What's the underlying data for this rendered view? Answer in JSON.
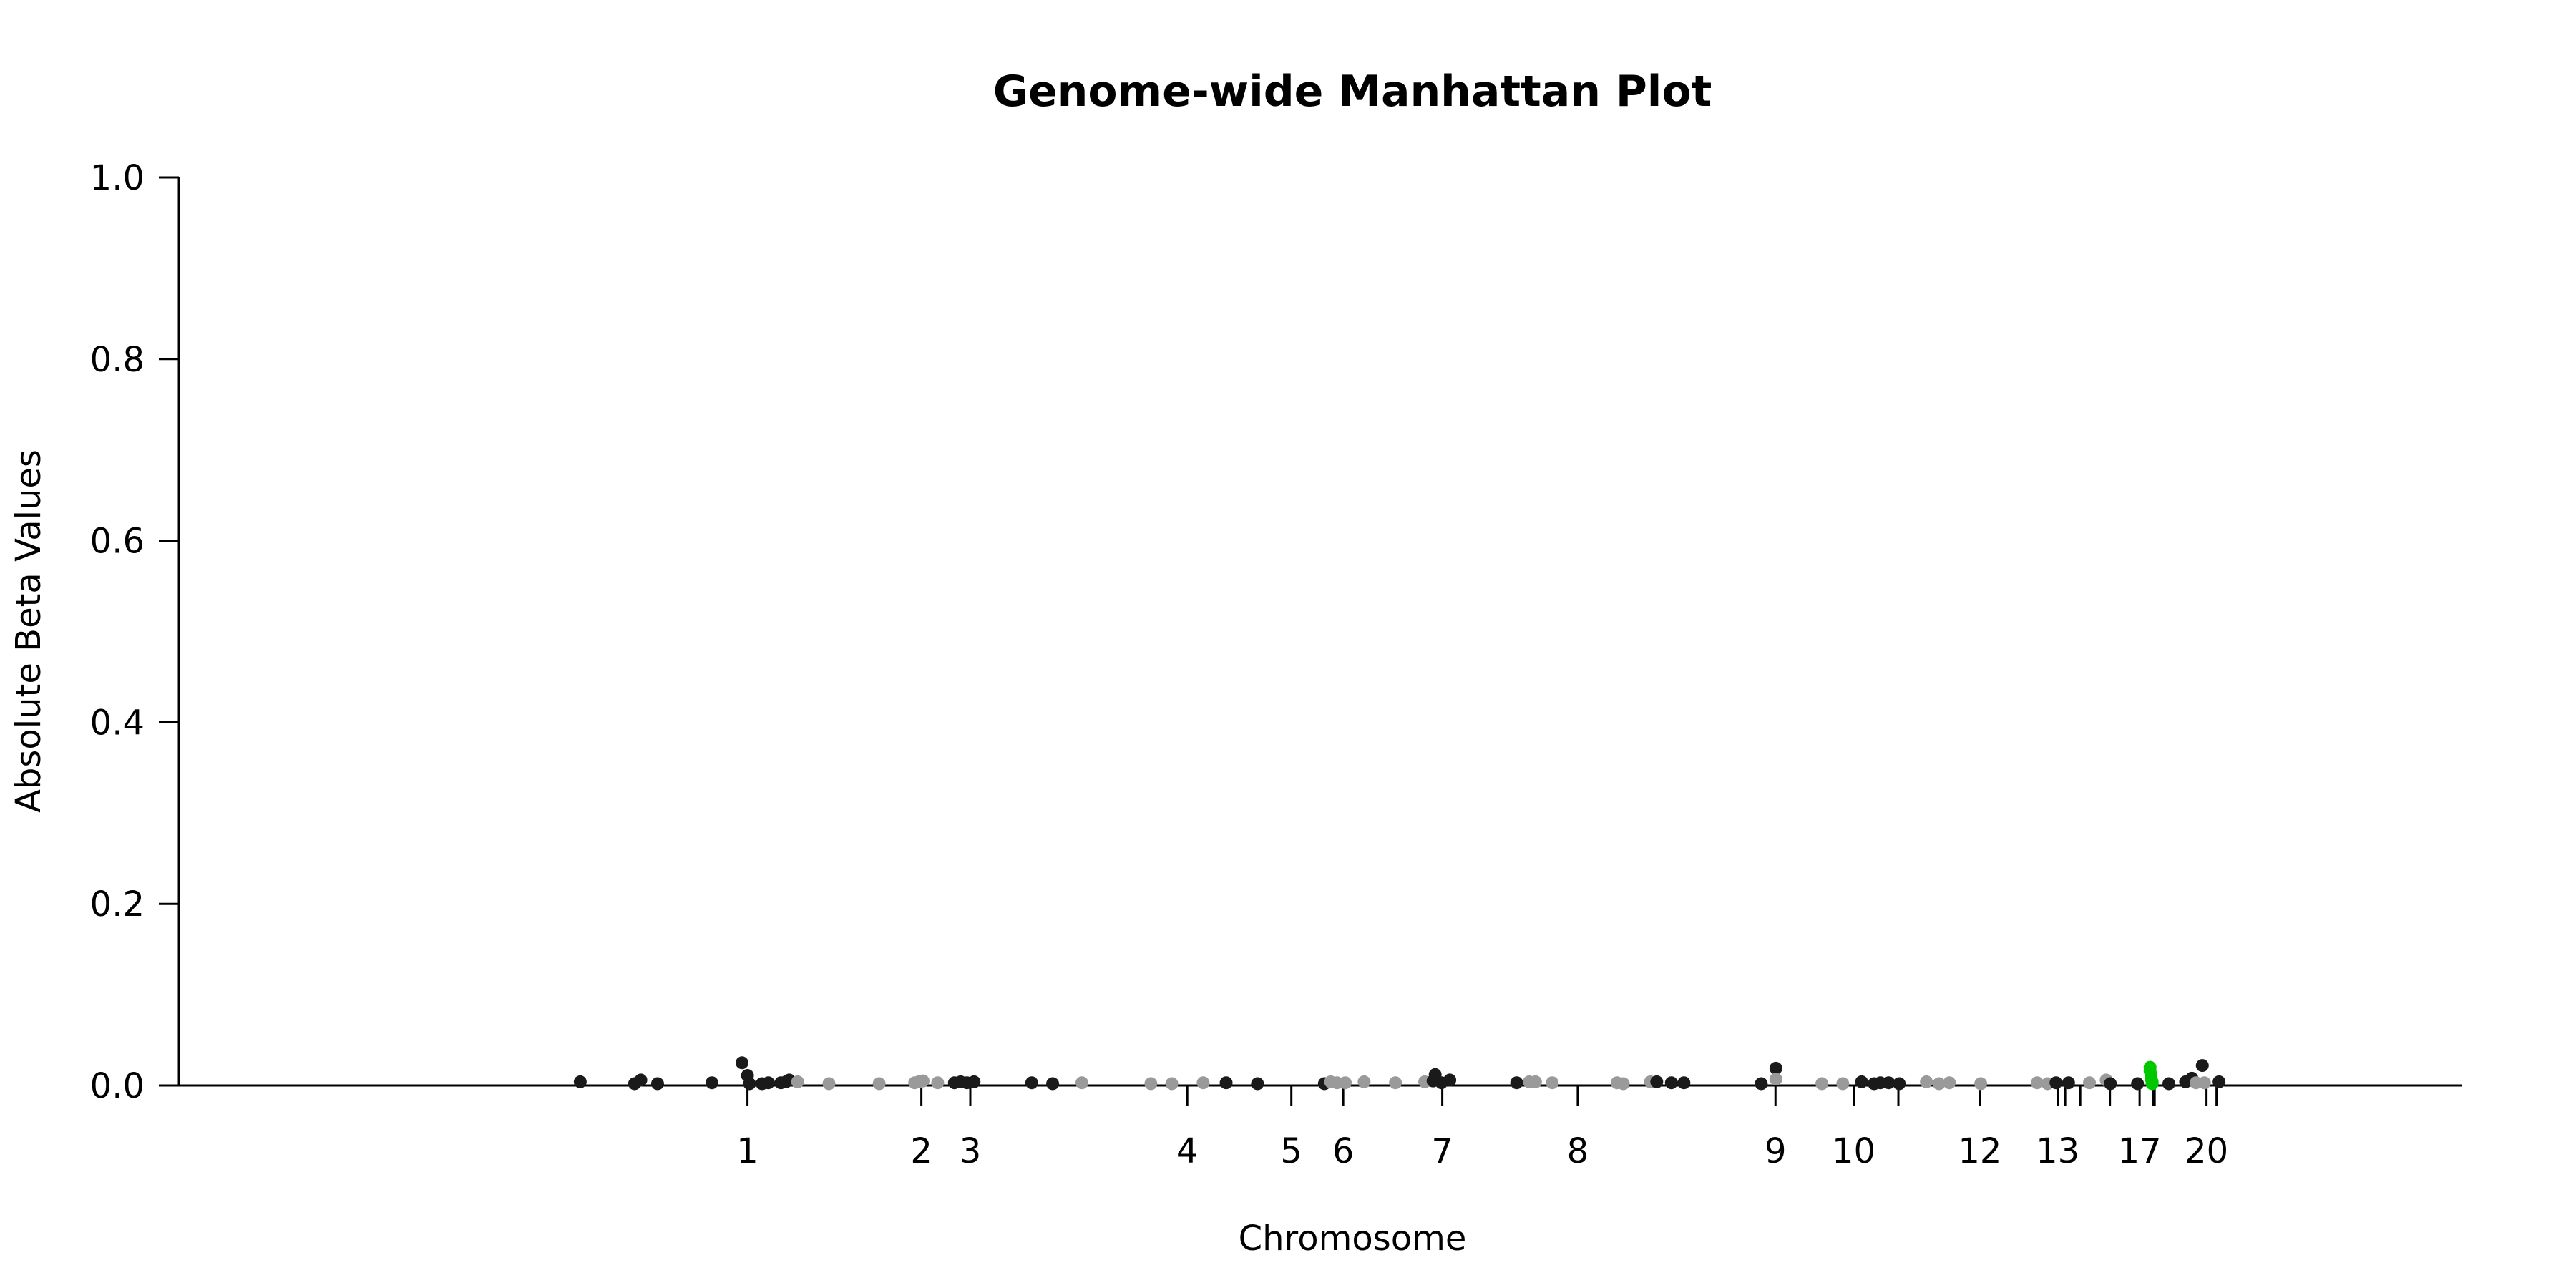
{
  "chart_data": {
    "type": "scatter",
    "title": "Genome-wide Manhattan Plot",
    "xlabel": "Chromosome",
    "ylabel": "Absolute Beta Values",
    "ylim": [
      0,
      1
    ],
    "yticks": [
      "0.0",
      "0.2",
      "0.4",
      "0.6",
      "0.8",
      "1.0"
    ],
    "grid": false,
    "xlim": [
      -13.6,
      41
    ],
    "chromosome_ticks": [
      {
        "label": "1",
        "x": 0
      },
      {
        "label": "2",
        "x": 4.16
      },
      {
        "label": "3",
        "x": 5.33
      },
      {
        "label": "4",
        "x": 10.52
      },
      {
        "label": "5",
        "x": 13.01
      },
      {
        "label": "6",
        "x": 14.25
      },
      {
        "label": "7",
        "x": 16.62
      },
      {
        "label": "8",
        "x": 19.86
      },
      {
        "label": "9",
        "x": 24.59
      },
      {
        "label": "10",
        "x": 26.46
      },
      {
        "label": "",
        "x": 27.53
      },
      {
        "label": "12",
        "x": 29.48
      },
      {
        "label": "13",
        "x": 31.34
      },
      {
        "label": "",
        "x": 31.52
      },
      {
        "label": "",
        "x": 31.88
      },
      {
        "label": "",
        "x": 32.59
      },
      {
        "label": "17",
        "x": 33.3
      },
      {
        "label": "",
        "x": 33.62
      },
      {
        "label": "",
        "x": 33.66
      },
      {
        "label": "20",
        "x": 34.9
      },
      {
        "label": "",
        "x": 35.14
      }
    ],
    "colors": {
      "black": "#1a1a1a",
      "gray": "#9a9a9a",
      "highlight": "#00c800"
    },
    "points": [
      {
        "x": -4.0,
        "y": 0.004,
        "c": "black"
      },
      {
        "x": -2.7,
        "y": 0.002,
        "c": "black"
      },
      {
        "x": -2.55,
        "y": 0.006,
        "c": "black"
      },
      {
        "x": -2.15,
        "y": 0.002,
        "c": "black"
      },
      {
        "x": -0.85,
        "y": 0.003,
        "c": "black"
      },
      {
        "x": -0.13,
        "y": 0.025,
        "c": "black"
      },
      {
        "x": 0.0,
        "y": 0.011,
        "c": "black"
      },
      {
        "x": 0.05,
        "y": 0.002,
        "c": "black"
      },
      {
        "x": 0.35,
        "y": 0.002,
        "c": "black"
      },
      {
        "x": 0.5,
        "y": 0.003,
        "c": "black"
      },
      {
        "x": 0.8,
        "y": 0.003,
        "c": "black"
      },
      {
        "x": 0.92,
        "y": 0.004,
        "c": "black"
      },
      {
        "x": 1.0,
        "y": 0.006,
        "c": "black"
      },
      {
        "x": 1.2,
        "y": 0.004,
        "c": "gray"
      },
      {
        "x": 1.95,
        "y": 0.002,
        "c": "gray"
      },
      {
        "x": 3.15,
        "y": 0.002,
        "c": "gray"
      },
      {
        "x": 4.0,
        "y": 0.003,
        "c": "gray"
      },
      {
        "x": 4.1,
        "y": 0.004,
        "c": "gray"
      },
      {
        "x": 4.2,
        "y": 0.005,
        "c": "gray"
      },
      {
        "x": 4.55,
        "y": 0.003,
        "c": "gray"
      },
      {
        "x": 4.95,
        "y": 0.003,
        "c": "black"
      },
      {
        "x": 5.1,
        "y": 0.004,
        "c": "black"
      },
      {
        "x": 5.25,
        "y": 0.003,
        "c": "black"
      },
      {
        "x": 5.42,
        "y": 0.004,
        "c": "black"
      },
      {
        "x": 6.8,
        "y": 0.003,
        "c": "black"
      },
      {
        "x": 7.3,
        "y": 0.002,
        "c": "black"
      },
      {
        "x": 8.0,
        "y": 0.003,
        "c": "gray"
      },
      {
        "x": 9.65,
        "y": 0.002,
        "c": "gray"
      },
      {
        "x": 10.15,
        "y": 0.002,
        "c": "gray"
      },
      {
        "x": 10.9,
        "y": 0.003,
        "c": "gray"
      },
      {
        "x": 11.45,
        "y": 0.003,
        "c": "black"
      },
      {
        "x": 12.2,
        "y": 0.002,
        "c": "black"
      },
      {
        "x": 13.8,
        "y": 0.002,
        "c": "black"
      },
      {
        "x": 13.95,
        "y": 0.004,
        "c": "gray"
      },
      {
        "x": 14.1,
        "y": 0.003,
        "c": "gray"
      },
      {
        "x": 14.3,
        "y": 0.003,
        "c": "gray"
      },
      {
        "x": 14.75,
        "y": 0.004,
        "c": "gray"
      },
      {
        "x": 15.5,
        "y": 0.003,
        "c": "gray"
      },
      {
        "x": 16.2,
        "y": 0.004,
        "c": "gray"
      },
      {
        "x": 16.4,
        "y": 0.005,
        "c": "black"
      },
      {
        "x": 16.45,
        "y": 0.012,
        "c": "black"
      },
      {
        "x": 16.6,
        "y": 0.003,
        "c": "black"
      },
      {
        "x": 16.8,
        "y": 0.006,
        "c": "black"
      },
      {
        "x": 18.4,
        "y": 0.003,
        "c": "black"
      },
      {
        "x": 18.7,
        "y": 0.004,
        "c": "gray"
      },
      {
        "x": 18.85,
        "y": 0.004,
        "c": "gray"
      },
      {
        "x": 19.25,
        "y": 0.003,
        "c": "gray"
      },
      {
        "x": 20.8,
        "y": 0.003,
        "c": "gray"
      },
      {
        "x": 20.95,
        "y": 0.002,
        "c": "gray"
      },
      {
        "x": 21.6,
        "y": 0.004,
        "c": "gray"
      },
      {
        "x": 21.75,
        "y": 0.004,
        "c": "black"
      },
      {
        "x": 22.1,
        "y": 0.003,
        "c": "black"
      },
      {
        "x": 22.4,
        "y": 0.003,
        "c": "black"
      },
      {
        "x": 24.25,
        "y": 0.002,
        "c": "black"
      },
      {
        "x": 24.6,
        "y": 0.019,
        "c": "black"
      },
      {
        "x": 24.6,
        "y": 0.007,
        "c": "gray"
      },
      {
        "x": 25.7,
        "y": 0.002,
        "c": "gray"
      },
      {
        "x": 26.2,
        "y": 0.002,
        "c": "gray"
      },
      {
        "x": 26.65,
        "y": 0.004,
        "c": "black"
      },
      {
        "x": 26.95,
        "y": 0.002,
        "c": "black"
      },
      {
        "x": 27.1,
        "y": 0.003,
        "c": "black"
      },
      {
        "x": 27.3,
        "y": 0.003,
        "c": "black"
      },
      {
        "x": 27.55,
        "y": 0.002,
        "c": "black"
      },
      {
        "x": 28.2,
        "y": 0.004,
        "c": "gray"
      },
      {
        "x": 28.5,
        "y": 0.002,
        "c": "gray"
      },
      {
        "x": 28.75,
        "y": 0.003,
        "c": "gray"
      },
      {
        "x": 29.5,
        "y": 0.002,
        "c": "gray"
      },
      {
        "x": 30.85,
        "y": 0.003,
        "c": "gray"
      },
      {
        "x": 31.1,
        "y": 0.002,
        "c": "gray"
      },
      {
        "x": 31.3,
        "y": 0.003,
        "c": "black"
      },
      {
        "x": 31.6,
        "y": 0.003,
        "c": "black"
      },
      {
        "x": 32.1,
        "y": 0.003,
        "c": "gray"
      },
      {
        "x": 32.5,
        "y": 0.006,
        "c": "gray"
      },
      {
        "x": 32.6,
        "y": 0.002,
        "c": "black"
      },
      {
        "x": 33.25,
        "y": 0.002,
        "c": "black"
      },
      {
        "x": 33.55,
        "y": 0.016,
        "c": "highlight"
      },
      {
        "x": 33.55,
        "y": 0.02,
        "c": "highlight"
      },
      {
        "x": 33.57,
        "y": 0.012,
        "c": "highlight"
      },
      {
        "x": 33.57,
        "y": 0.008,
        "c": "highlight"
      },
      {
        "x": 33.6,
        "y": 0.004,
        "c": "highlight"
      },
      {
        "x": 33.6,
        "y": 0.002,
        "c": "highlight"
      },
      {
        "x": 34.0,
        "y": 0.002,
        "c": "black"
      },
      {
        "x": 34.4,
        "y": 0.004,
        "c": "black"
      },
      {
        "x": 34.55,
        "y": 0.008,
        "c": "black"
      },
      {
        "x": 34.65,
        "y": 0.003,
        "c": "gray"
      },
      {
        "x": 34.8,
        "y": 0.022,
        "c": "black"
      },
      {
        "x": 34.85,
        "y": 0.003,
        "c": "gray"
      },
      {
        "x": 35.2,
        "y": 0.004,
        "c": "black"
      }
    ]
  }
}
